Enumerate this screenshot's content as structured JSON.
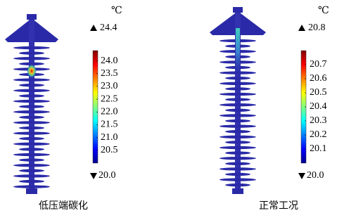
{
  "chart_data": [
    {
      "type": "colorbar",
      "title": "低压端碳化",
      "unit": "℃",
      "colormap": "jet",
      "max": 24.4,
      "min": {
        "value": 20,
        "label": "20.0"
      },
      "ticks": [
        20.5,
        {
          "value": 21,
          "label": "21.0"
        },
        21.5,
        {
          "value": 22,
          "label": "22.0"
        },
        22.5,
        {
          "value": 23,
          "label": "23.0"
        },
        23.5,
        {
          "value": 24,
          "label": "24.0"
        }
      ]
    },
    {
      "type": "colorbar",
      "title": "正常工况",
      "unit": "℃",
      "colormap": "jet",
      "max": 20.8,
      "min": {
        "value": 20,
        "label": "20.0"
      },
      "ticks": [
        20.1,
        20.2,
        20.3,
        20.4,
        20.5,
        20.6,
        20.7
      ]
    }
  ]
}
